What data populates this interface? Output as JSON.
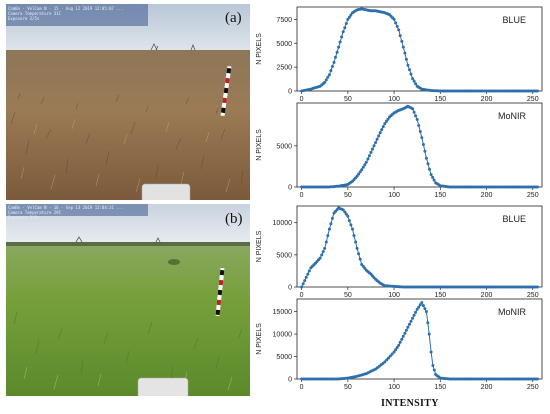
{
  "photos": [
    {
      "label": "(a)",
      "stamp_lines": [
        "CamBo · VelCam N · 15 · Aug 12 2019 12:05:07 ...",
        "Camera Temperature 31C",
        "Exposure 3/5s"
      ]
    },
    {
      "label": "(b)",
      "stamp_lines": [
        "CamBo · VelCam N · 16 · Sep 13 2019 12:04:31 ...",
        "Camera Temperature 29C",
        "Exposure 3/5s"
      ]
    }
  ],
  "xaxis_title": "INTENSITY",
  "colors": {
    "series": "#2e6fad",
    "axis": "#222222",
    "grid": "#cccccc"
  },
  "chart_data": [
    {
      "type": "scatter",
      "panel": "a",
      "label": "BLUE",
      "ylabel": "N PIXELS",
      "xlim": [
        -5,
        260
      ],
      "ylim": [
        0,
        8800
      ],
      "xticks": [
        0,
        50,
        100,
        150,
        200,
        250
      ],
      "yticks": [
        0,
        2500,
        5000,
        7500
      ],
      "x": [
        0,
        10,
        20,
        25,
        30,
        35,
        40,
        45,
        50,
        55,
        60,
        65,
        70,
        75,
        80,
        85,
        90,
        95,
        100,
        105,
        110,
        115,
        120,
        125,
        130,
        140,
        150,
        200,
        255
      ],
      "y": [
        0,
        200,
        500,
        900,
        1700,
        3000,
        4600,
        6200,
        7500,
        8200,
        8500,
        8600,
        8500,
        8400,
        8400,
        8300,
        8200,
        8000,
        7500,
        6400,
        4600,
        2700,
        1300,
        500,
        200,
        50,
        0,
        0,
        0
      ]
    },
    {
      "type": "scatter",
      "panel": "a",
      "label": "MoNIR",
      "ylabel": "N PIXELS",
      "xlim": [
        -5,
        260
      ],
      "ylim": [
        0,
        10200
      ],
      "xticks": [
        0,
        50,
        100,
        150,
        200,
        250
      ],
      "yticks": [
        0,
        5000
      ],
      "x": [
        0,
        30,
        40,
        50,
        55,
        60,
        65,
        70,
        75,
        80,
        85,
        90,
        95,
        100,
        105,
        110,
        115,
        120,
        125,
        130,
        135,
        140,
        145,
        150,
        160,
        200,
        255
      ],
      "y": [
        0,
        0,
        100,
        300,
        700,
        1300,
        2100,
        3000,
        4200,
        5400,
        6600,
        7700,
        8500,
        9000,
        9300,
        9500,
        9800,
        9500,
        8200,
        6000,
        3500,
        1500,
        500,
        150,
        0,
        0,
        0
      ]
    },
    {
      "type": "scatter",
      "panel": "b",
      "label": "BLUE",
      "ylabel": "N PIXELS",
      "xlim": [
        -5,
        260
      ],
      "ylim": [
        0,
        12600
      ],
      "xticks": [
        0,
        50,
        100,
        150,
        200,
        250
      ],
      "yticks": [
        0,
        5000,
        10000
      ],
      "x": [
        0,
        5,
        10,
        15,
        20,
        25,
        30,
        35,
        40,
        45,
        50,
        55,
        60,
        65,
        70,
        75,
        80,
        85,
        90,
        100,
        110,
        150,
        200,
        255
      ],
      "y": [
        0,
        1500,
        3000,
        3700,
        4500,
        6000,
        9000,
        11500,
        12300,
        12000,
        11000,
        9000,
        6000,
        3500,
        2600,
        2000,
        1200,
        600,
        200,
        100,
        0,
        0,
        0,
        0
      ]
    },
    {
      "type": "scatter",
      "panel": "b",
      "label": "MoNIR",
      "ylabel": "N PIXELS",
      "xlim": [
        -5,
        260
      ],
      "ylim": [
        0,
        17800
      ],
      "xticks": [
        0,
        50,
        100,
        150,
        200,
        250
      ],
      "yticks": [
        0,
        5000,
        10000,
        15000
      ],
      "x": [
        0,
        40,
        50,
        60,
        70,
        80,
        90,
        100,
        105,
        110,
        115,
        120,
        125,
        130,
        135,
        138,
        140,
        142,
        145,
        150,
        160,
        200,
        255
      ],
      "y": [
        0,
        0,
        200,
        600,
        1200,
        2200,
        3800,
        6000,
        7500,
        9500,
        11500,
        13500,
        15500,
        17000,
        15000,
        10000,
        6000,
        3000,
        1000,
        200,
        0,
        0,
        0
      ]
    }
  ]
}
